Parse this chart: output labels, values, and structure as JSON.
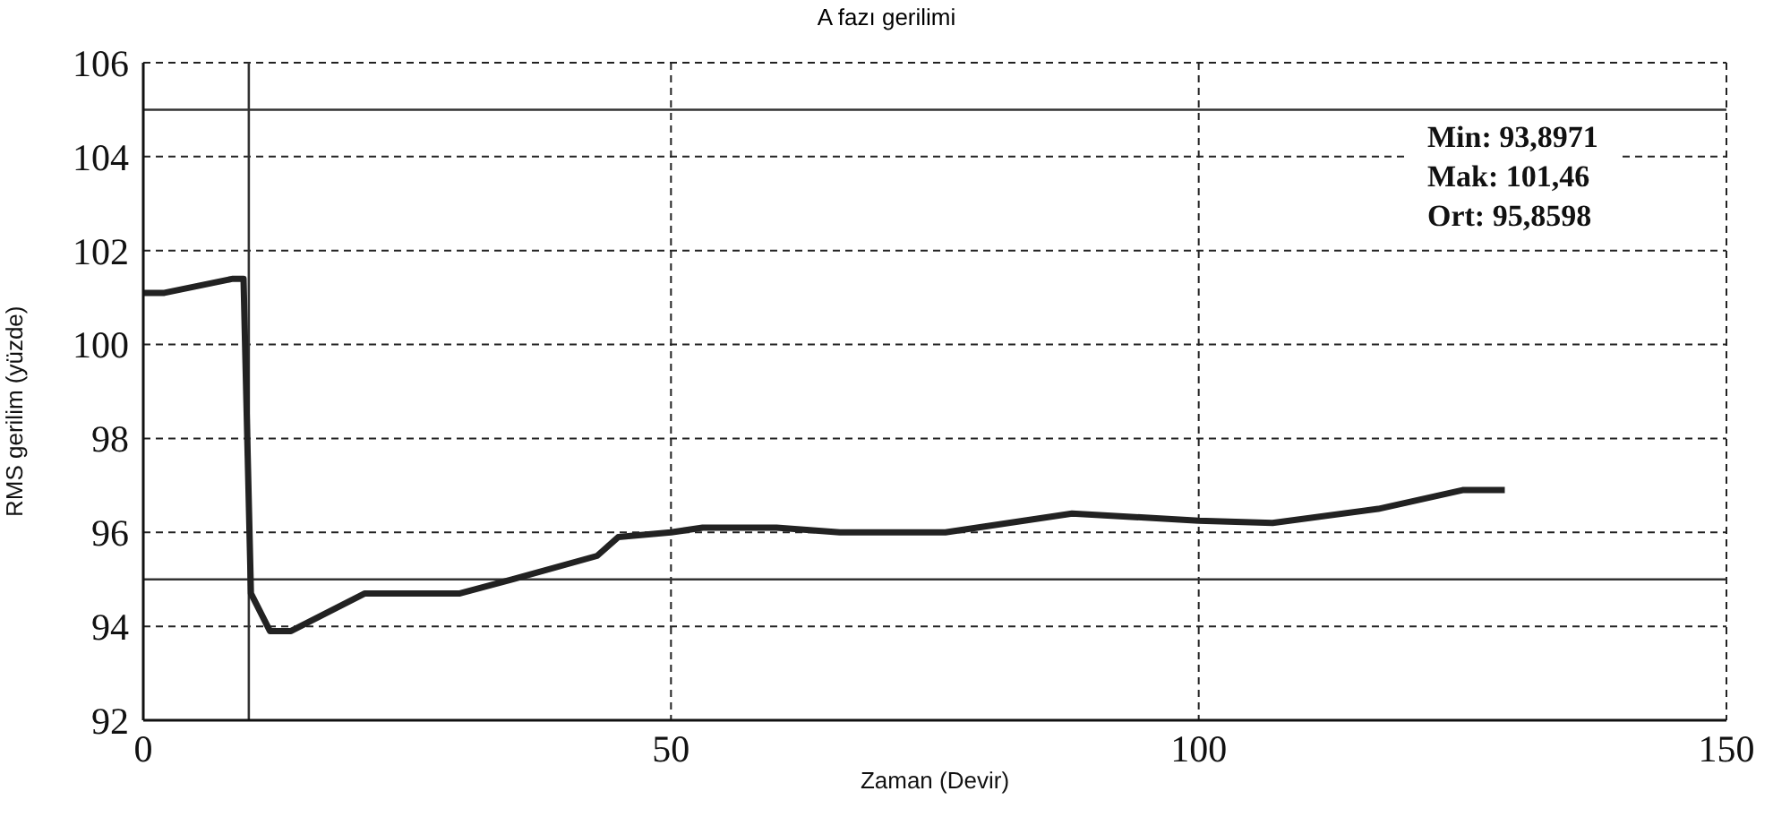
{
  "chart_data": {
    "type": "line",
    "title": "A fazı gerilimi",
    "xlabel": "Zaman (Devir)",
    "ylabel": "RMS gerilim (yüzde)",
    "x": [
      0,
      2,
      8.5,
      9.5,
      10.2,
      12,
      14,
      21,
      30,
      35,
      43,
      45,
      50,
      53,
      60,
      66,
      76,
      88,
      100,
      107,
      117,
      125,
      129
    ],
    "series": [
      {
        "color": "#222222",
        "values": [
          101.1,
          101.1,
          101.4,
          101.4,
          94.7,
          93.9,
          93.9,
          94.7,
          94.7,
          95.0,
          95.5,
          95.9,
          96.0,
          96.1,
          96.1,
          96.0,
          96.0,
          96.4,
          96.25,
          96.2,
          96.5,
          96.9,
          96.9
        ]
      }
    ],
    "xlim": [
      0,
      150
    ],
    "xticks": [
      0,
      50,
      100,
      150
    ],
    "ylim": [
      92,
      106
    ],
    "yticks": [
      92,
      94,
      96,
      98,
      100,
      102,
      104,
      106
    ],
    "grid": true,
    "marker": "none",
    "line_style": "solid",
    "ref_lines": [
      {
        "axis": "y",
        "value": 105,
        "color": "#333333"
      },
      {
        "axis": "y",
        "value": 95,
        "color": "#333333"
      },
      {
        "axis": "x",
        "value": 10,
        "color": "#333333"
      }
    ],
    "annotations": [
      "Min: 93,8971",
      "Mak: 101,46",
      "Ort: 95,8598"
    ]
  }
}
